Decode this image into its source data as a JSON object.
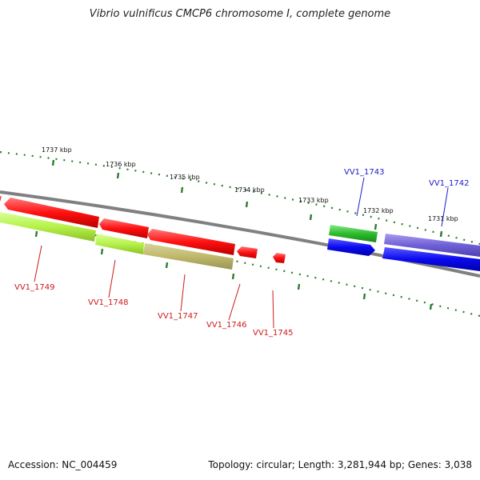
{
  "title": "Vibrio vulnificus CMCP6 chromosome I, complete genome",
  "footer": {
    "accession": "Accession: NC_004459",
    "stats": "Topology: circular; Length: 3,281,944 bp; Genes: 3,038"
  },
  "colors": {
    "backbone": "#808080",
    "ticks": "#2e7d2e",
    "label_forward": "#1a1acc",
    "label_reverse": "#cc1a1a"
  },
  "kbp_ticks": [
    "1737 kbp",
    "1736 kbp",
    "1735 kbp",
    "1734 kbp",
    "1733 kbp",
    "1732 kbp",
    "1731 kbp"
  ],
  "genes": [
    {
      "name": "VV1_1749",
      "strand": "reverse",
      "label_color": "#cc1a1a"
    },
    {
      "name": "VV1_1748",
      "strand": "reverse",
      "label_color": "#cc1a1a"
    },
    {
      "name": "VV1_1747",
      "strand": "reverse",
      "label_color": "#cc1a1a"
    },
    {
      "name": "VV1_1746",
      "strand": "reverse",
      "label_color": "#cc1a1a"
    },
    {
      "name": "VV1_1745",
      "strand": "reverse",
      "label_color": "#cc1a1a"
    },
    {
      "name": "VV1_1743",
      "strand": "forward",
      "label_color": "#1a1acc"
    },
    {
      "name": "VV1_1742",
      "strand": "forward",
      "label_color": "#1a1acc"
    }
  ]
}
